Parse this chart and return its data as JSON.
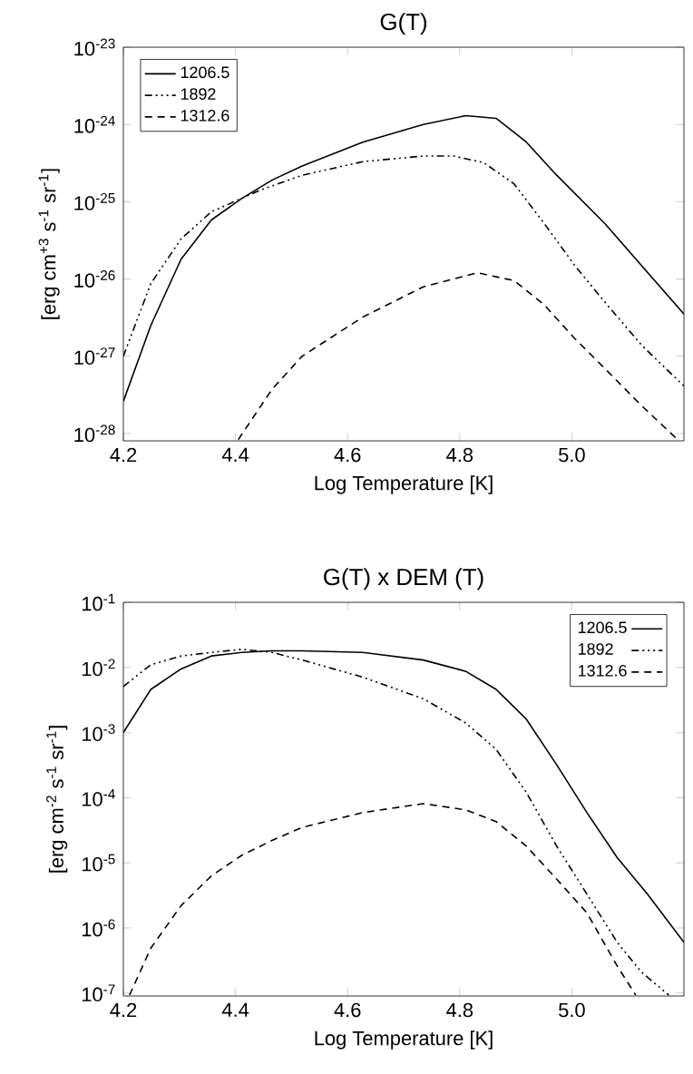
{
  "chart_data": [
    {
      "type": "line",
      "title": "G(T)",
      "xlabel": "Log Temperature [K]",
      "ylabel": "[erg cm$^{+3}$ s$^{-1}$ sr$^{-1}$]",
      "log": "y",
      "legend": "top left",
      "grid": false,
      "xlim": [
        4.2,
        5.2
      ],
      "xticks": [
        {
          "value": 4.2,
          "label": "4.2"
        },
        {
          "value": 4.4,
          "label": "4.4"
        },
        {
          "value": 4.6,
          "label": "4.6"
        },
        {
          "value": 4.8,
          "label": "4.8"
        },
        {
          "value": 5.0,
          "label": "5.0"
        }
      ],
      "ylim": [
        8e-29,
        1e-23
      ],
      "yticks": [
        {
          "value": 1e-28,
          "label": "10$^{-28}$"
        },
        {
          "value": 1e-27,
          "label": "10$^{-27}$"
        },
        {
          "value": 1e-26,
          "label": "10$^{-26}$"
        },
        {
          "value": 1e-25,
          "label": "10$^{-25}$"
        },
        {
          "value": 1e-24,
          "label": "10$^{-24}$"
        },
        {
          "value": 1e-23,
          "label": "10$^{-23}$"
        }
      ],
      "series": [
        {
          "name": "1206.5",
          "color": "#000000",
          "line_style": "solid",
          "x": [
            4.2,
            4.249,
            4.303,
            4.357,
            4.411,
            4.465,
            4.519,
            4.627,
            4.735,
            4.811,
            4.865,
            4.919,
            4.973,
            5.059,
            5.124,
            5.2
          ],
          "values": [
            2.6e-28,
            2.5e-27,
            1.8e-26,
            5.8e-26,
            1.1e-25,
            1.9e-25,
            2.9e-25,
            5.9e-25,
            1e-24,
            1.3e-24,
            1.2e-24,
            5.9e-25,
            2.2e-25,
            5.2e-26,
            1.5e-26,
            3.5e-27
          ]
        },
        {
          "name": "1892",
          "color": "#000000",
          "line_style": "dashdot",
          "x": [
            4.2,
            4.249,
            4.303,
            4.357,
            4.443,
            4.519,
            4.627,
            4.735,
            4.789,
            4.843,
            4.897,
            4.951,
            5.005,
            5.059,
            5.124,
            5.2
          ],
          "values": [
            1e-27,
            8.7e-27,
            3.3e-26,
            7.4e-26,
            1.4e-25,
            2.2e-25,
            3.3e-25,
            3.9e-25,
            3.9e-25,
            3.2e-25,
            1.7e-25,
            5.2e-26,
            1.5e-26,
            5e-27,
            1.4e-27,
            4.1e-28
          ]
        },
        {
          "name": "1312.6",
          "color": "#000000",
          "line_style": "dashed",
          "x": [
            4.405,
            4.465,
            4.519,
            4.627,
            4.735,
            4.832,
            4.897,
            4.951,
            5.005,
            5.059,
            5.124,
            5.189
          ],
          "values": [
            8.3e-29,
            3.7e-28,
            1e-27,
            3.2e-27,
            7.9e-27,
            1.2e-26,
            9.5e-27,
            4.6e-27,
            1.7e-27,
            6.9e-28,
            2.3e-28,
            8.3e-29
          ]
        }
      ]
    },
    {
      "type": "line",
      "title": "G(T) x DEM (T)",
      "xlabel": "Log Temperature [K]",
      "ylabel": "[erg cm$^{-2}$ s$^{-1}$ sr$^{-1}$]",
      "log": "y",
      "legend": "top right",
      "grid": false,
      "xlim": [
        4.2,
        5.2
      ],
      "xticks": [
        {
          "value": 4.2,
          "label": "4.2"
        },
        {
          "value": 4.4,
          "label": "4.4"
        },
        {
          "value": 4.6,
          "label": "4.6"
        },
        {
          "value": 4.8,
          "label": "4.8"
        },
        {
          "value": 5.0,
          "label": "5.0"
        }
      ],
      "ylim": [
        9e-08,
        0.1
      ],
      "yticks": [
        {
          "value": 1e-07,
          "label": "10$^{-7}$"
        },
        {
          "value": 1e-06,
          "label": "10$^{-6}$"
        },
        {
          "value": 1e-05,
          "label": "10$^{-5}$"
        },
        {
          "value": 0.0001,
          "label": "10$^{-4}$"
        },
        {
          "value": 0.001,
          "label": "10$^{-3}$"
        },
        {
          "value": 0.01,
          "label": "10$^{-2}$"
        },
        {
          "value": 0.1,
          "label": "10$^{-1}$"
        }
      ],
      "series": [
        {
          "name": "1206.5",
          "color": "#000000",
          "line_style": "solid",
          "x": [
            4.2,
            4.249,
            4.303,
            4.357,
            4.411,
            4.465,
            4.519,
            4.627,
            4.735,
            4.811,
            4.865,
            4.919,
            4.973,
            5.027,
            5.081,
            5.135,
            5.2
          ],
          "values": [
            0.001,
            0.0046,
            0.0095,
            0.015,
            0.017,
            0.018,
            0.018,
            0.017,
            0.013,
            0.0087,
            0.0046,
            0.0016,
            0.00032,
            5.9e-05,
            1.2e-05,
            3.3e-06,
            6e-07
          ]
        },
        {
          "name": "1892",
          "color": "#000000",
          "line_style": "dashdot",
          "x": [
            4.2,
            4.249,
            4.303,
            4.357,
            4.411,
            4.465,
            4.519,
            4.627,
            4.735,
            4.811,
            4.865,
            4.919,
            4.973,
            5.027,
            5.081,
            5.124,
            5.173
          ],
          "values": [
            0.0051,
            0.011,
            0.015,
            0.017,
            0.019,
            0.017,
            0.013,
            0.0071,
            0.0033,
            0.0014,
            0.00055,
            0.00012,
            1.8e-05,
            3.3e-06,
            6e-07,
            2.1e-07,
            9.3e-08
          ]
        },
        {
          "name": "1312.6",
          "color": "#000000",
          "line_style": "dashed",
          "x": [
            4.211,
            4.249,
            4.303,
            4.357,
            4.411,
            4.465,
            4.519,
            4.627,
            4.735,
            4.811,
            4.865,
            4.919,
            4.973,
            5.027,
            5.081,
            5.114
          ],
          "values": [
            9.3e-08,
            4.9e-07,
            2.2e-06,
            6.3e-06,
            1.3e-05,
            2.2e-05,
            3.5e-05,
            5.9e-05,
            8.1e-05,
            6.5e-05,
            4.3e-05,
            1.8e-05,
            5.6e-06,
            1.7e-06,
            2.6e-07,
            9.3e-08
          ]
        }
      ]
    }
  ]
}
